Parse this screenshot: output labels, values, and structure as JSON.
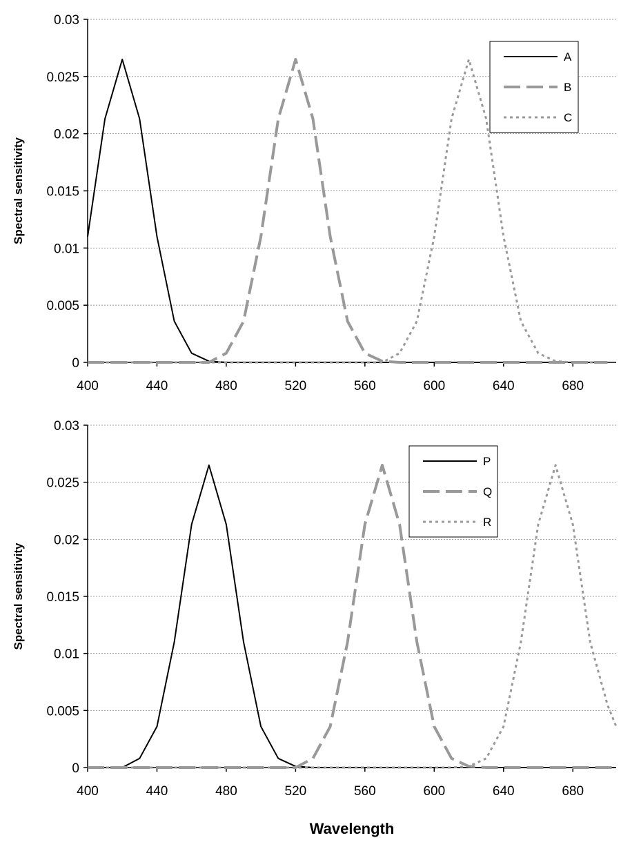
{
  "chart_data": [
    {
      "type": "line",
      "title": "",
      "xlabel": "",
      "ylabel": "Spectral sensitivity",
      "xlim": [
        400,
        705
      ],
      "ylim": [
        0,
        0.03
      ],
      "xticks": [
        "400",
        "440",
        "480",
        "520",
        "560",
        "600",
        "640",
        "680"
      ],
      "yticks": [
        "0",
        "0.005",
        "0.01",
        "0.015",
        "0.02",
        "0.025",
        "0.03"
      ],
      "grid": "horizontal",
      "legend_position": "top-right",
      "x": [
        400,
        410,
        420,
        430,
        440,
        450,
        460,
        470,
        480,
        490,
        500,
        510,
        520,
        530,
        540,
        550,
        560,
        570,
        580,
        590,
        600,
        610,
        620,
        630,
        640,
        650,
        660,
        670,
        680,
        690,
        700
      ],
      "series": [
        {
          "name": "A",
          "color": "#000000",
          "style": "solid",
          "values": [
            0.011,
            0.0213,
            0.0265,
            0.0213,
            0.011,
            0.0036,
            0.0008,
            0.0001,
            0,
            0,
            0,
            0,
            0,
            0,
            0,
            0,
            0,
            0,
            0,
            0,
            0,
            0,
            0,
            0,
            0,
            0,
            0,
            0,
            0,
            0,
            0
          ]
        },
        {
          "name": "B",
          "color": "#999999",
          "style": "long-dash",
          "values": [
            0,
            0,
            0,
            0,
            0,
            0,
            0,
            0,
            0.0008,
            0.0036,
            0.011,
            0.0213,
            0.0265,
            0.0213,
            0.011,
            0.0036,
            0.0008,
            0.0001,
            0,
            0,
            0,
            0,
            0,
            0,
            0,
            0,
            0,
            0,
            0,
            0,
            0
          ]
        },
        {
          "name": "C",
          "color": "#999999",
          "style": "dotted",
          "values": [
            0,
            0,
            0,
            0,
            0,
            0,
            0,
            0,
            0,
            0,
            0,
            0,
            0,
            0,
            0,
            0,
            0,
            0,
            0.0008,
            0.0036,
            0.011,
            0.0213,
            0.0265,
            0.0213,
            0.011,
            0.0036,
            0.0008,
            0.0001,
            0,
            0,
            0
          ]
        }
      ]
    },
    {
      "type": "line",
      "title": "",
      "xlabel": "Wavelength",
      "ylabel": "Spectral sensitivity",
      "xlim": [
        400,
        705
      ],
      "ylim": [
        0,
        0.03
      ],
      "xticks": [
        "400",
        "440",
        "480",
        "520",
        "560",
        "600",
        "640",
        "680"
      ],
      "yticks": [
        "0",
        "0.005",
        "0.01",
        "0.015",
        "0.02",
        "0.025",
        "0.03"
      ],
      "grid": "horizontal",
      "legend_position": "top-right",
      "x": [
        400,
        410,
        420,
        430,
        440,
        450,
        460,
        470,
        480,
        490,
        500,
        510,
        520,
        530,
        540,
        550,
        560,
        570,
        580,
        590,
        600,
        610,
        620,
        630,
        640,
        650,
        660,
        670,
        680,
        690,
        700,
        705
      ],
      "series": [
        {
          "name": "P",
          "color": "#000000",
          "style": "solid",
          "values": [
            0,
            0,
            0,
            0.0008,
            0.0036,
            0.011,
            0.0213,
            0.0265,
            0.0213,
            0.011,
            0.0036,
            0.0008,
            0.0001,
            0,
            0,
            0,
            0,
            0,
            0,
            0,
            0,
            0,
            0,
            0,
            0,
            0,
            0,
            0,
            0,
            0,
            0,
            0
          ]
        },
        {
          "name": "Q",
          "color": "#999999",
          "style": "long-dash",
          "values": [
            0,
            0,
            0,
            0,
            0,
            0,
            0,
            0,
            0,
            0,
            0,
            0,
            0,
            0.0008,
            0.0036,
            0.011,
            0.0213,
            0.0265,
            0.0213,
            0.011,
            0.0036,
            0.0008,
            0.0001,
            0,
            0,
            0,
            0,
            0,
            0,
            0,
            0,
            0
          ]
        },
        {
          "name": "R",
          "color": "#999999",
          "style": "dotted",
          "values": [
            0,
            0,
            0,
            0,
            0,
            0,
            0,
            0,
            0,
            0,
            0,
            0,
            0,
            0,
            0,
            0,
            0,
            0,
            0,
            0,
            0,
            0,
            0.0001,
            0.0008,
            0.0036,
            0.011,
            0.0213,
            0.0265,
            0.0213,
            0.011,
            0.0055,
            0.0036
          ]
        }
      ]
    }
  ]
}
